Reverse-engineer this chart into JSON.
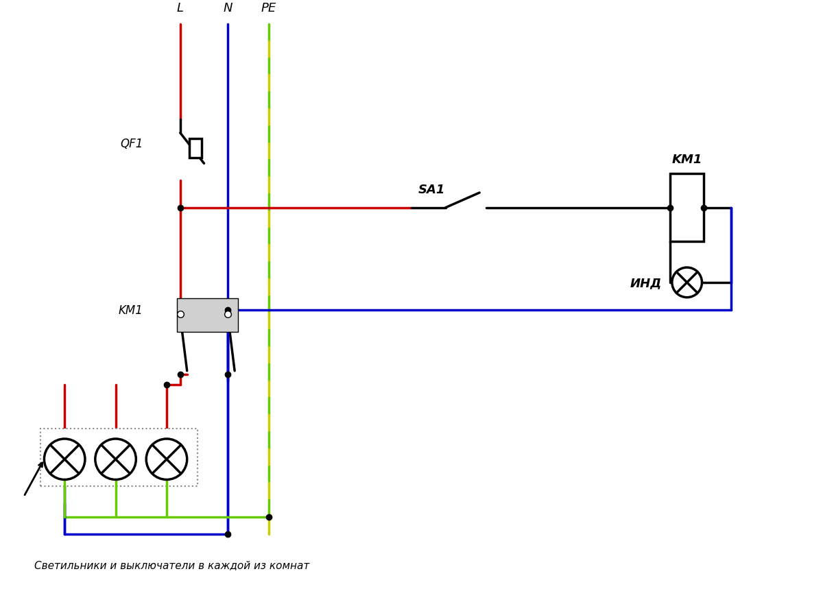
{
  "bg_color": "#ffffff",
  "line_color_red": "#cc0000",
  "line_color_blue": "#0000cc",
  "line_color_green": "#66cc00",
  "line_color_yellow": "#cccc00",
  "line_color_black": "#000000",
  "line_width": 2.5,
  "title": "",
  "label_L": "L",
  "label_N": "N",
  "label_PE": "PE",
  "label_QF1": "QF1",
  "label_KM1_top": "KM1",
  "label_KM1_right": "KM1",
  "label_SA1": "SA1",
  "label_IND": "ИНД",
  "label_bottom": "Светильники и выключатели в каждой из комнат"
}
